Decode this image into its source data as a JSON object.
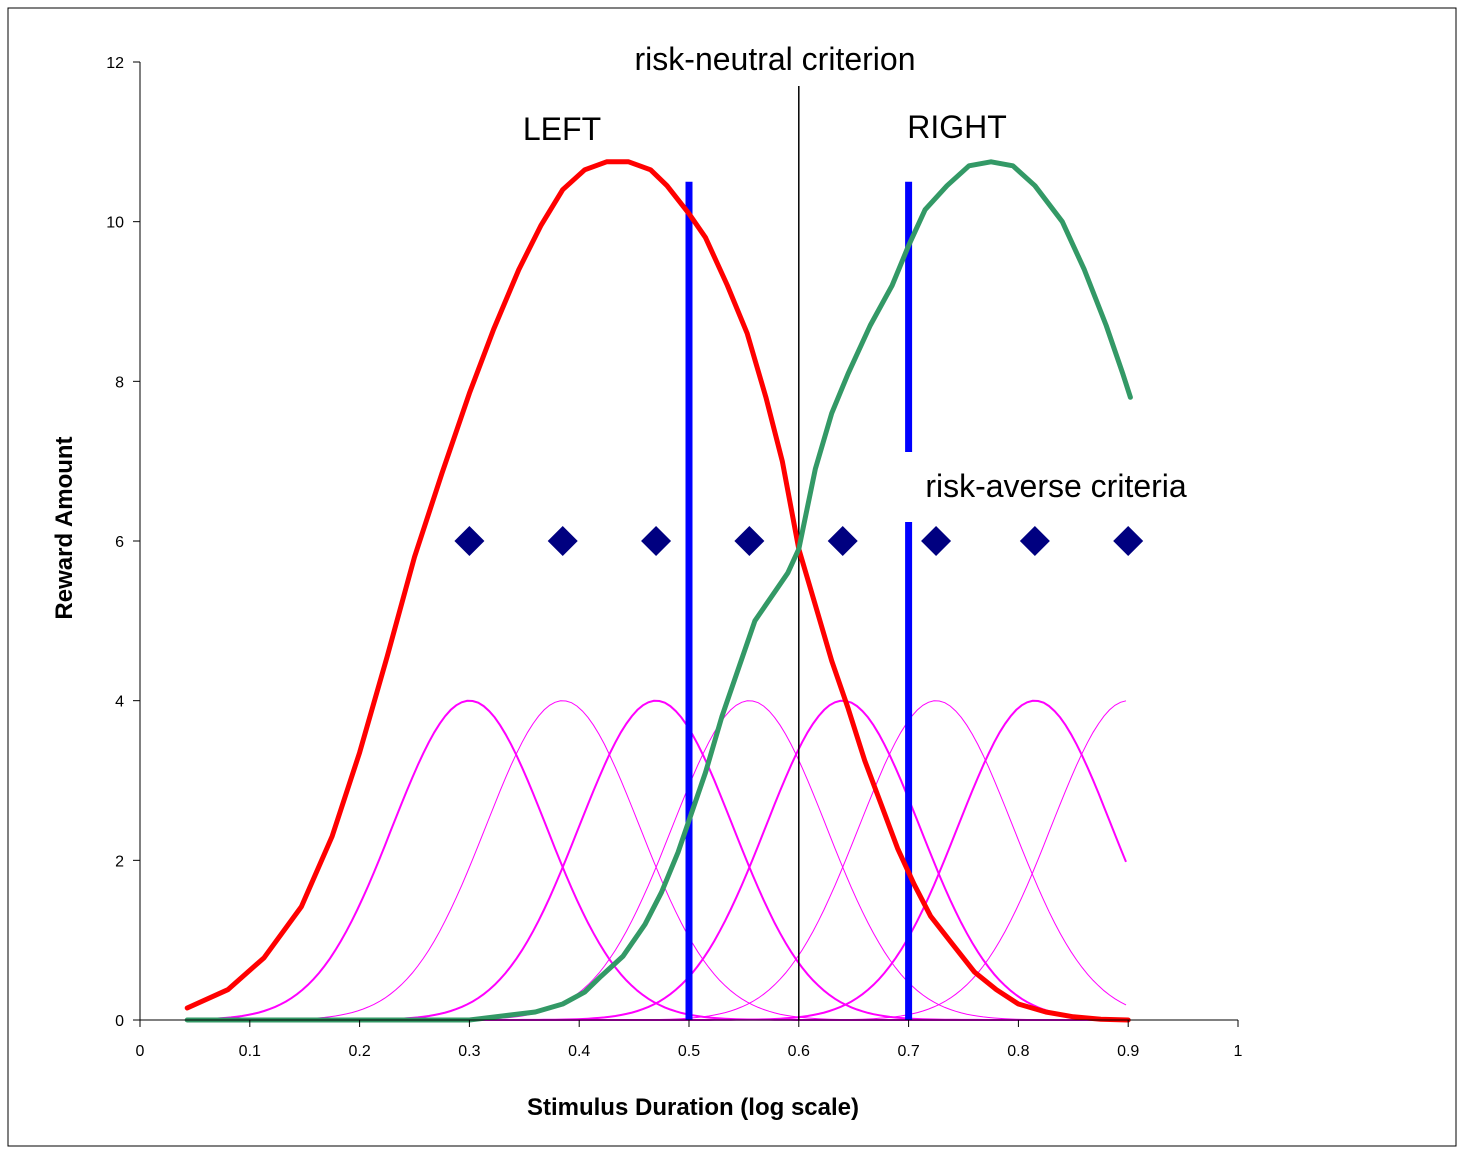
{
  "chart_data": {
    "type": "line",
    "title": "",
    "xlabel": "Stimulus Duration (log scale)",
    "ylabel": "Reward Amount",
    "xlim": [
      0,
      1
    ],
    "ylim": [
      0,
      12
    ],
    "x_ticks": [
      "0",
      "0.1",
      "0.2",
      "0.3",
      "0.4",
      "0.5",
      "0.6",
      "0.7",
      "0.8",
      "0.9",
      "1"
    ],
    "y_ticks": [
      "0",
      "2",
      "4",
      "6",
      "8",
      "10",
      "12"
    ],
    "grid": false,
    "legend": "none",
    "series": [
      {
        "name": "LEFT",
        "color": "#ff0000",
        "points": [
          [
            0.043,
            0.15
          ],
          [
            0.08,
            0.38
          ],
          [
            0.113,
            0.78
          ],
          [
            0.147,
            1.42
          ],
          [
            0.175,
            2.3
          ],
          [
            0.2,
            3.35
          ],
          [
            0.225,
            4.55
          ],
          [
            0.25,
            5.8
          ],
          [
            0.275,
            6.85
          ],
          [
            0.3,
            7.85
          ],
          [
            0.322,
            8.65
          ],
          [
            0.345,
            9.4
          ],
          [
            0.365,
            9.95
          ],
          [
            0.385,
            10.4
          ],
          [
            0.405,
            10.65
          ],
          [
            0.425,
            10.75
          ],
          [
            0.445,
            10.75
          ],
          [
            0.465,
            10.65
          ],
          [
            0.48,
            10.45
          ],
          [
            0.5,
            10.1
          ],
          [
            0.515,
            9.8
          ],
          [
            0.535,
            9.2
          ],
          [
            0.553,
            8.6
          ],
          [
            0.57,
            7.8
          ],
          [
            0.585,
            7.0
          ],
          [
            0.6,
            5.9
          ],
          [
            0.615,
            5.2
          ],
          [
            0.63,
            4.5
          ],
          [
            0.645,
            3.9
          ],
          [
            0.66,
            3.25
          ],
          [
            0.675,
            2.7
          ],
          [
            0.69,
            2.15
          ],
          [
            0.705,
            1.7
          ],
          [
            0.72,
            1.3
          ],
          [
            0.74,
            0.95
          ],
          [
            0.76,
            0.6
          ],
          [
            0.78,
            0.38
          ],
          [
            0.8,
            0.2
          ],
          [
            0.825,
            0.1
          ],
          [
            0.85,
            0.04
          ],
          [
            0.875,
            0.01
          ],
          [
            0.9,
            0.0
          ]
        ]
      },
      {
        "name": "RIGHT",
        "color": "#339966",
        "points": [
          [
            0.043,
            0.0
          ],
          [
            0.1,
            0.0
          ],
          [
            0.15,
            0.0
          ],
          [
            0.2,
            0.0
          ],
          [
            0.25,
            0.0
          ],
          [
            0.3,
            0.0
          ],
          [
            0.33,
            0.05
          ],
          [
            0.36,
            0.1
          ],
          [
            0.385,
            0.2
          ],
          [
            0.405,
            0.35
          ],
          [
            0.42,
            0.55
          ],
          [
            0.44,
            0.8
          ],
          [
            0.46,
            1.2
          ],
          [
            0.475,
            1.6
          ],
          [
            0.49,
            2.1
          ],
          [
            0.5,
            2.5
          ],
          [
            0.515,
            3.1
          ],
          [
            0.53,
            3.8
          ],
          [
            0.545,
            4.4
          ],
          [
            0.56,
            5.0
          ],
          [
            0.575,
            5.3
          ],
          [
            0.59,
            5.6
          ],
          [
            0.6,
            5.9
          ],
          [
            0.615,
            6.9
          ],
          [
            0.63,
            7.6
          ],
          [
            0.645,
            8.1
          ],
          [
            0.665,
            8.7
          ],
          [
            0.685,
            9.2
          ],
          [
            0.7,
            9.7
          ],
          [
            0.715,
            10.15
          ],
          [
            0.735,
            10.45
          ],
          [
            0.755,
            10.7
          ],
          [
            0.775,
            10.75
          ],
          [
            0.795,
            10.7
          ],
          [
            0.815,
            10.45
          ],
          [
            0.84,
            10.0
          ],
          [
            0.86,
            9.4
          ],
          [
            0.88,
            8.7
          ],
          [
            0.895,
            8.1
          ],
          [
            0.902,
            7.8
          ]
        ]
      },
      {
        "name": "",
        "color": "#0000ff",
        "x": [
          0.5,
          0.5
        ],
        "y": [
          0.0,
          10.5
        ]
      },
      {
        "name": "",
        "color": "#0000ff",
        "x": [
          0.7,
          0.7
        ],
        "y": [
          0.0,
          10.5
        ]
      },
      {
        "name": "",
        "color": "#000000",
        "x": [
          0.6,
          0.6
        ],
        "y": [
          0.0,
          11.7
        ]
      },
      {
        "name": "",
        "type": "scatter",
        "color": "#000080",
        "x": [
          0.3,
          0.385,
          0.47,
          0.555,
          0.64,
          0.725,
          0.815,
          0.9
        ],
        "y": [
          6,
          6,
          6,
          6,
          6,
          6,
          6,
          6
        ]
      },
      {
        "name": "",
        "type": "gaussians",
        "color": "#ff00ff",
        "centers": [
          0.3,
          0.385,
          0.47,
          0.555,
          0.64,
          0.725,
          0.815,
          0.9
        ],
        "peak": 4,
        "sigma_near": 0.07,
        "sigma_far": 0.07
      }
    ],
    "annotations": [
      {
        "text": "risk-neutral criterion",
        "color": "#000000"
      },
      {
        "text": "LEFT",
        "color": "#ff0000"
      },
      {
        "text": "RIGHT",
        "color": "#339966"
      },
      {
        "text": "risk-averse criteria",
        "color": "#0000ff"
      }
    ]
  }
}
